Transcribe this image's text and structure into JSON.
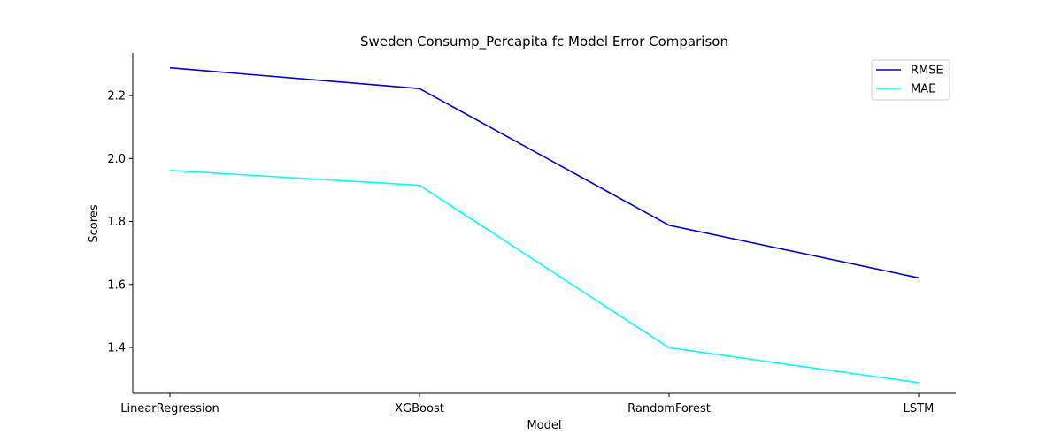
{
  "chart_data": {
    "type": "line",
    "title": "Sweden Consump_Percapita fc Model Error Comparison",
    "xlabel": "Model",
    "ylabel": "Scores",
    "categories": [
      "LinearRegression",
      "XGBoost",
      "RandomForest",
      "LSTM"
    ],
    "series": [
      {
        "name": "RMSE",
        "color": "#0000cd",
        "values": [
          2.288,
          2.222,
          1.788,
          1.621
        ]
      },
      {
        "name": "MAE",
        "color": "#00ffff",
        "values": [
          1.962,
          1.915,
          1.399,
          1.288
        ]
      }
    ],
    "ylim": [
      1.254,
      2.335
    ],
    "yticks": [
      "1.4",
      "1.6",
      "1.8",
      "2.0",
      "2.2"
    ],
    "grid": false,
    "legend_position": "top-right"
  }
}
